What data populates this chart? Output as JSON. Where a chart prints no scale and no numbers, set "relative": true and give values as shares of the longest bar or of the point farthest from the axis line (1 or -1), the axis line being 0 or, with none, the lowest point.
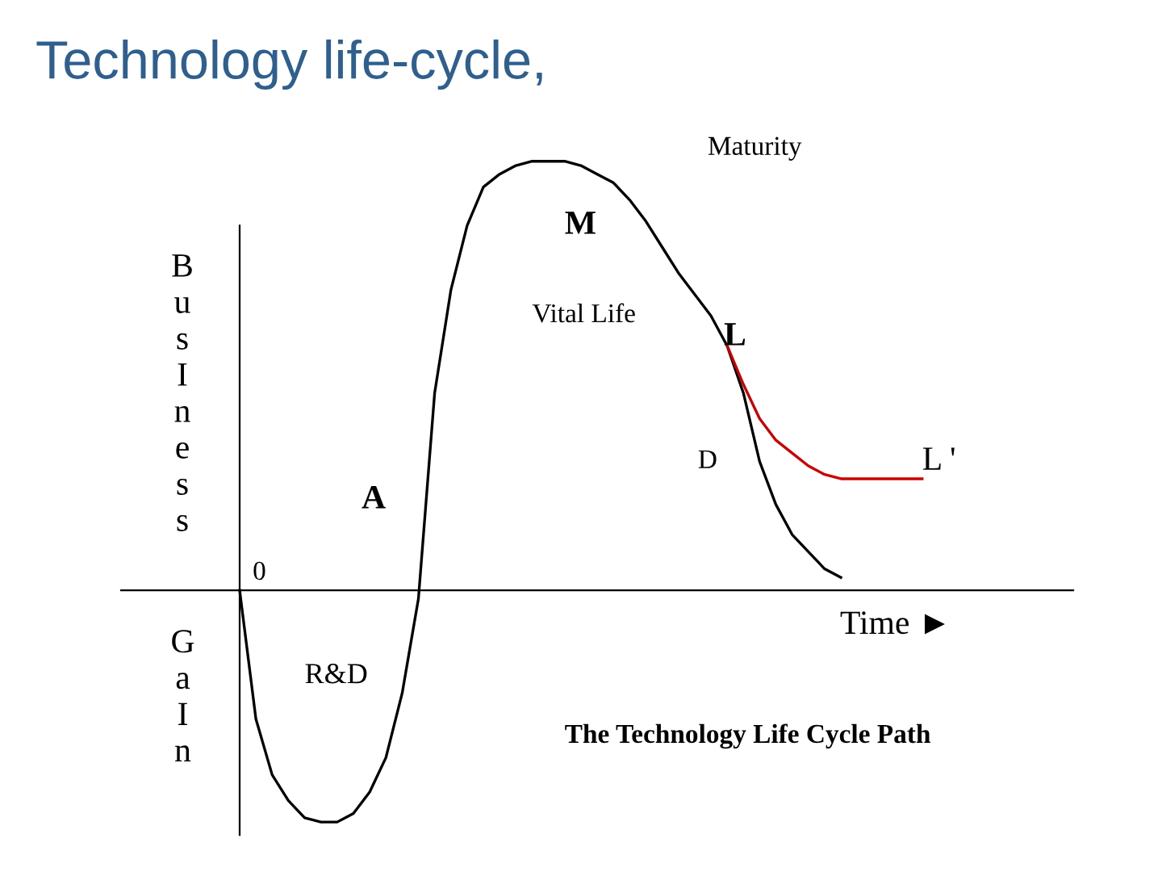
{
  "chart_data": {
    "type": "line",
    "title": "Technology life-cycle,",
    "ylabel": "BusIness",
    "xlabel": "Time ►",
    "relative": true,
    "categories": [
      null,
      null,
      null,
      null,
      null,
      null,
      null,
      null,
      null,
      null,
      null,
      null,
      null,
      null,
      null,
      null,
      null,
      null,
      null,
      null,
      null,
      null,
      null,
      null,
      null,
      null,
      null,
      null,
      null,
      null,
      null,
      null,
      null,
      null,
      null,
      null,
      null,
      null,
      null,
      null,
      null,
      null,
      null,
      null,
      null,
      null,
      null,
      null,
      null,
      null,
      null,
      null,
      null,
      null,
      null,
      null,
      null,
      null,
      null
    ],
    "series": [
      {
        "color": "#000000",
        "values": [
          null,
          null,
          null,
          null,
          null,
          null,
          null,
          0,
          -0.3,
          -0.43,
          -0.49,
          -0.53,
          -0.54,
          -0.54,
          -0.52,
          -0.47,
          -0.39,
          -0.24,
          -0.02,
          0.46,
          0.7,
          0.85,
          0.94,
          0.97,
          0.99,
          1.0,
          1.0,
          1.0,
          0.99,
          0.97,
          0.95,
          0.91,
          0.86,
          0.8,
          0.74,
          0.69,
          0.64,
          0.57,
          0.46,
          0.3,
          0.2,
          0.13,
          0.09,
          0.05,
          0.03,
          null,
          null,
          null,
          null,
          null,
          null,
          null,
          null,
          null,
          null,
          null,
          null,
          null,
          null
        ]
      },
      {
        "color": "#cc0000",
        "values": [
          null,
          null,
          null,
          null,
          null,
          null,
          null,
          null,
          null,
          null,
          null,
          null,
          null,
          null,
          null,
          null,
          null,
          null,
          null,
          null,
          null,
          null,
          null,
          null,
          null,
          null,
          null,
          null,
          null,
          null,
          null,
          null,
          null,
          null,
          null,
          null,
          null,
          0.57,
          0.48,
          0.4,
          0.35,
          0.32,
          0.29,
          0.27,
          0.26,
          0.26,
          0.26,
          0.26,
          0.26,
          0.26,
          null,
          null,
          null,
          null,
          null,
          null,
          null,
          null,
          null
        ]
      }
    ],
    "annotations": [
      "0",
      "A",
      "M",
      "Maturity",
      "Vital Life",
      "L",
      "D",
      "L '",
      "R&D",
      "The Technology Life Cycle Path",
      "GaIn"
    ],
    "grid": false,
    "legend": false,
    "marker": "none",
    "line_style": "solid"
  }
}
